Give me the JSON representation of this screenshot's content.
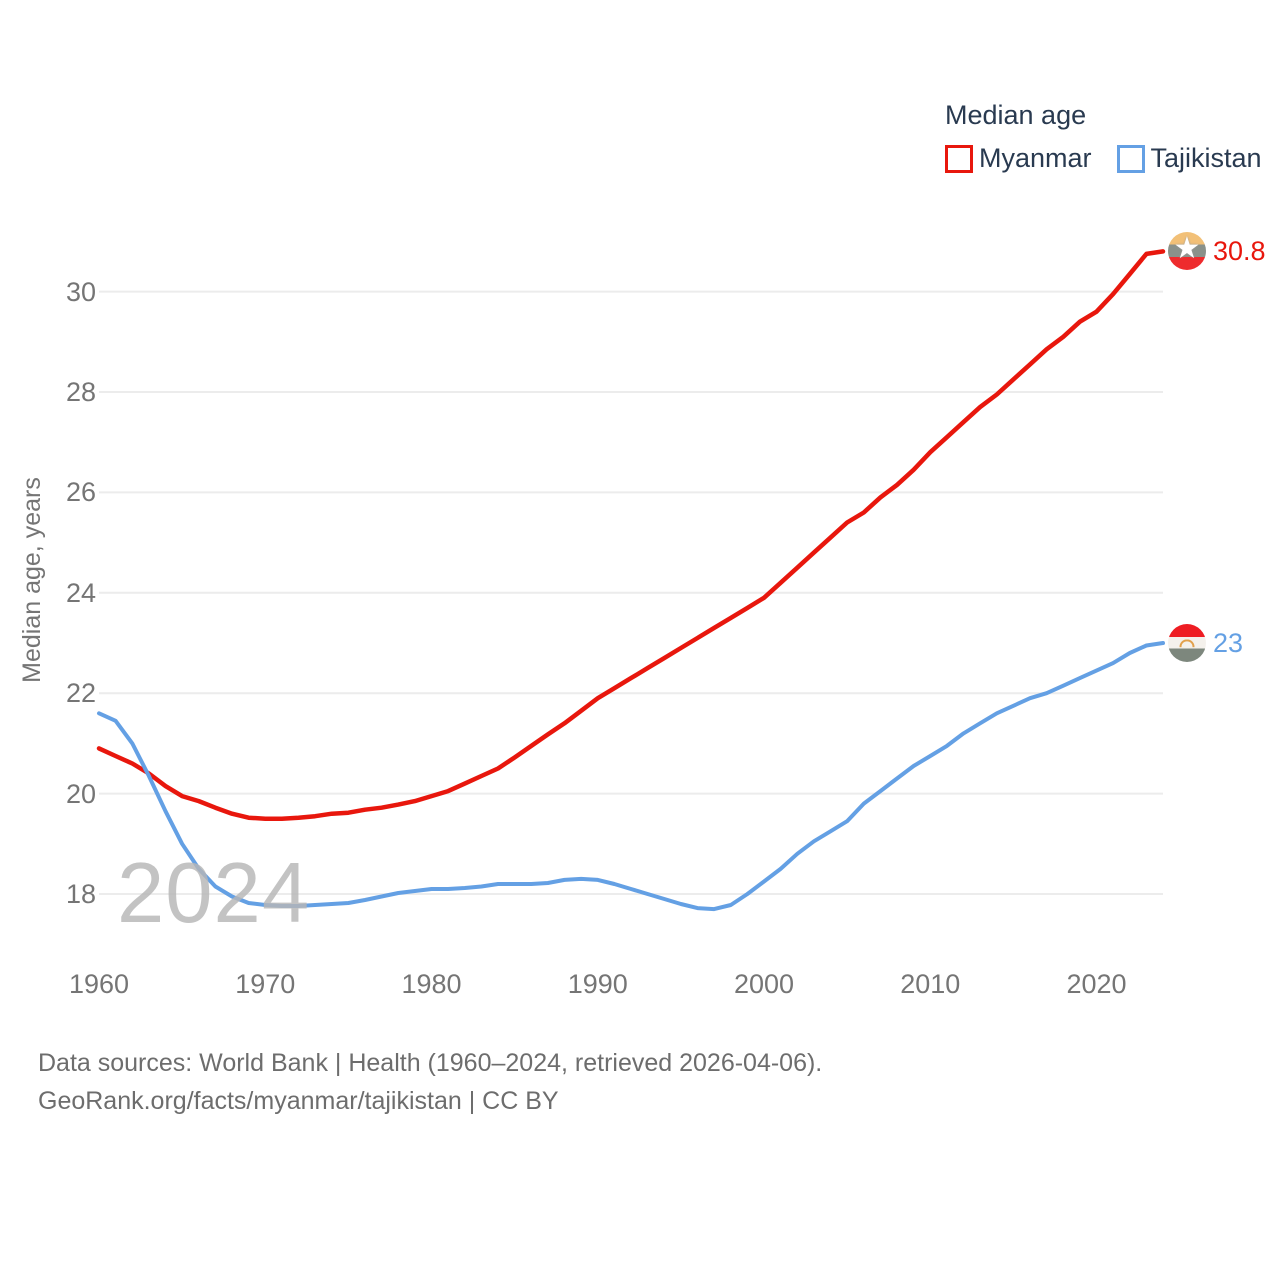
{
  "legend": {
    "title": "Median age",
    "items": [
      {
        "label": "Myanmar",
        "color": "#e8170d"
      },
      {
        "label": "Tajikistan",
        "color": "#64a0e4"
      }
    ]
  },
  "watermark": "2024",
  "y_axis": {
    "title": "Median age, years",
    "ticks": [
      30,
      28,
      26,
      24,
      22,
      20,
      18
    ]
  },
  "x_axis": {
    "ticks": [
      1960,
      1970,
      1980,
      1990,
      2000,
      2010,
      2020
    ]
  },
  "footer": {
    "line1": "Data sources: World Bank | Health (1960–2024, retrieved 2026-04-06).",
    "line2": "GeoRank.org/facts/myanmar/tajikistan | CC BY"
  },
  "chart_data": {
    "type": "line",
    "title": "Median age",
    "ylabel": "Median age, years",
    "xlabel": "",
    "x_range": [
      1960,
      2024
    ],
    "ylim": [
      16.9,
      31.4
    ],
    "grid": "horizontal-only",
    "grid_color": "#ececec",
    "legend_position": "top-right",
    "years": [
      1960,
      1961,
      1962,
      1963,
      1964,
      1965,
      1966,
      1967,
      1968,
      1969,
      1970,
      1971,
      1972,
      1973,
      1974,
      1975,
      1976,
      1977,
      1978,
      1979,
      1980,
      1981,
      1982,
      1983,
      1984,
      1985,
      1986,
      1987,
      1988,
      1989,
      1990,
      1991,
      1992,
      1993,
      1994,
      1995,
      1996,
      1997,
      1998,
      1999,
      2000,
      2001,
      2002,
      2003,
      2004,
      2005,
      2006,
      2007,
      2008,
      2009,
      2010,
      2011,
      2012,
      2013,
      2014,
      2015,
      2016,
      2017,
      2018,
      2019,
      2020,
      2021,
      2022,
      2023,
      2024
    ],
    "series": [
      {
        "name": "Myanmar",
        "color": "#e8170d",
        "end_label": "30.8",
        "end_value": 30.8,
        "values": [
          20.9,
          20.75,
          20.6,
          20.4,
          20.15,
          19.95,
          19.85,
          19.72,
          19.6,
          19.52,
          19.5,
          19.5,
          19.52,
          19.55,
          19.6,
          19.62,
          19.68,
          19.72,
          19.78,
          19.85,
          19.95,
          20.05,
          20.2,
          20.35,
          20.5,
          20.72,
          20.95,
          21.18,
          21.4,
          21.65,
          21.9,
          22.1,
          22.3,
          22.5,
          22.7,
          22.9,
          23.1,
          23.3,
          23.5,
          23.7,
          23.9,
          24.2,
          24.5,
          24.8,
          25.1,
          25.4,
          25.6,
          25.9,
          26.15,
          26.45,
          26.8,
          27.1,
          27.4,
          27.7,
          27.95,
          28.25,
          28.55,
          28.85,
          29.1,
          29.4,
          29.6,
          29.95,
          30.35,
          30.75,
          30.8
        ]
      },
      {
        "name": "Tajikistan",
        "color": "#64a0e4",
        "end_label": "23",
        "end_value": 23.0,
        "values": [
          21.6,
          21.45,
          21.0,
          20.35,
          19.65,
          19.0,
          18.5,
          18.15,
          17.95,
          17.82,
          17.78,
          17.76,
          17.76,
          17.78,
          17.8,
          17.82,
          17.88,
          17.95,
          18.02,
          18.06,
          18.1,
          18.1,
          18.12,
          18.15,
          18.2,
          18.2,
          18.2,
          18.22,
          18.28,
          18.3,
          18.28,
          18.2,
          18.1,
          18.0,
          17.9,
          17.8,
          17.72,
          17.7,
          17.78,
          18.0,
          18.25,
          18.5,
          18.8,
          19.05,
          19.25,
          19.45,
          19.8,
          20.05,
          20.3,
          20.55,
          20.75,
          20.95,
          21.2,
          21.4,
          21.6,
          21.75,
          21.9,
          22.0,
          22.15,
          22.3,
          22.45,
          22.6,
          22.8,
          22.95,
          23.0
        ]
      }
    ]
  }
}
